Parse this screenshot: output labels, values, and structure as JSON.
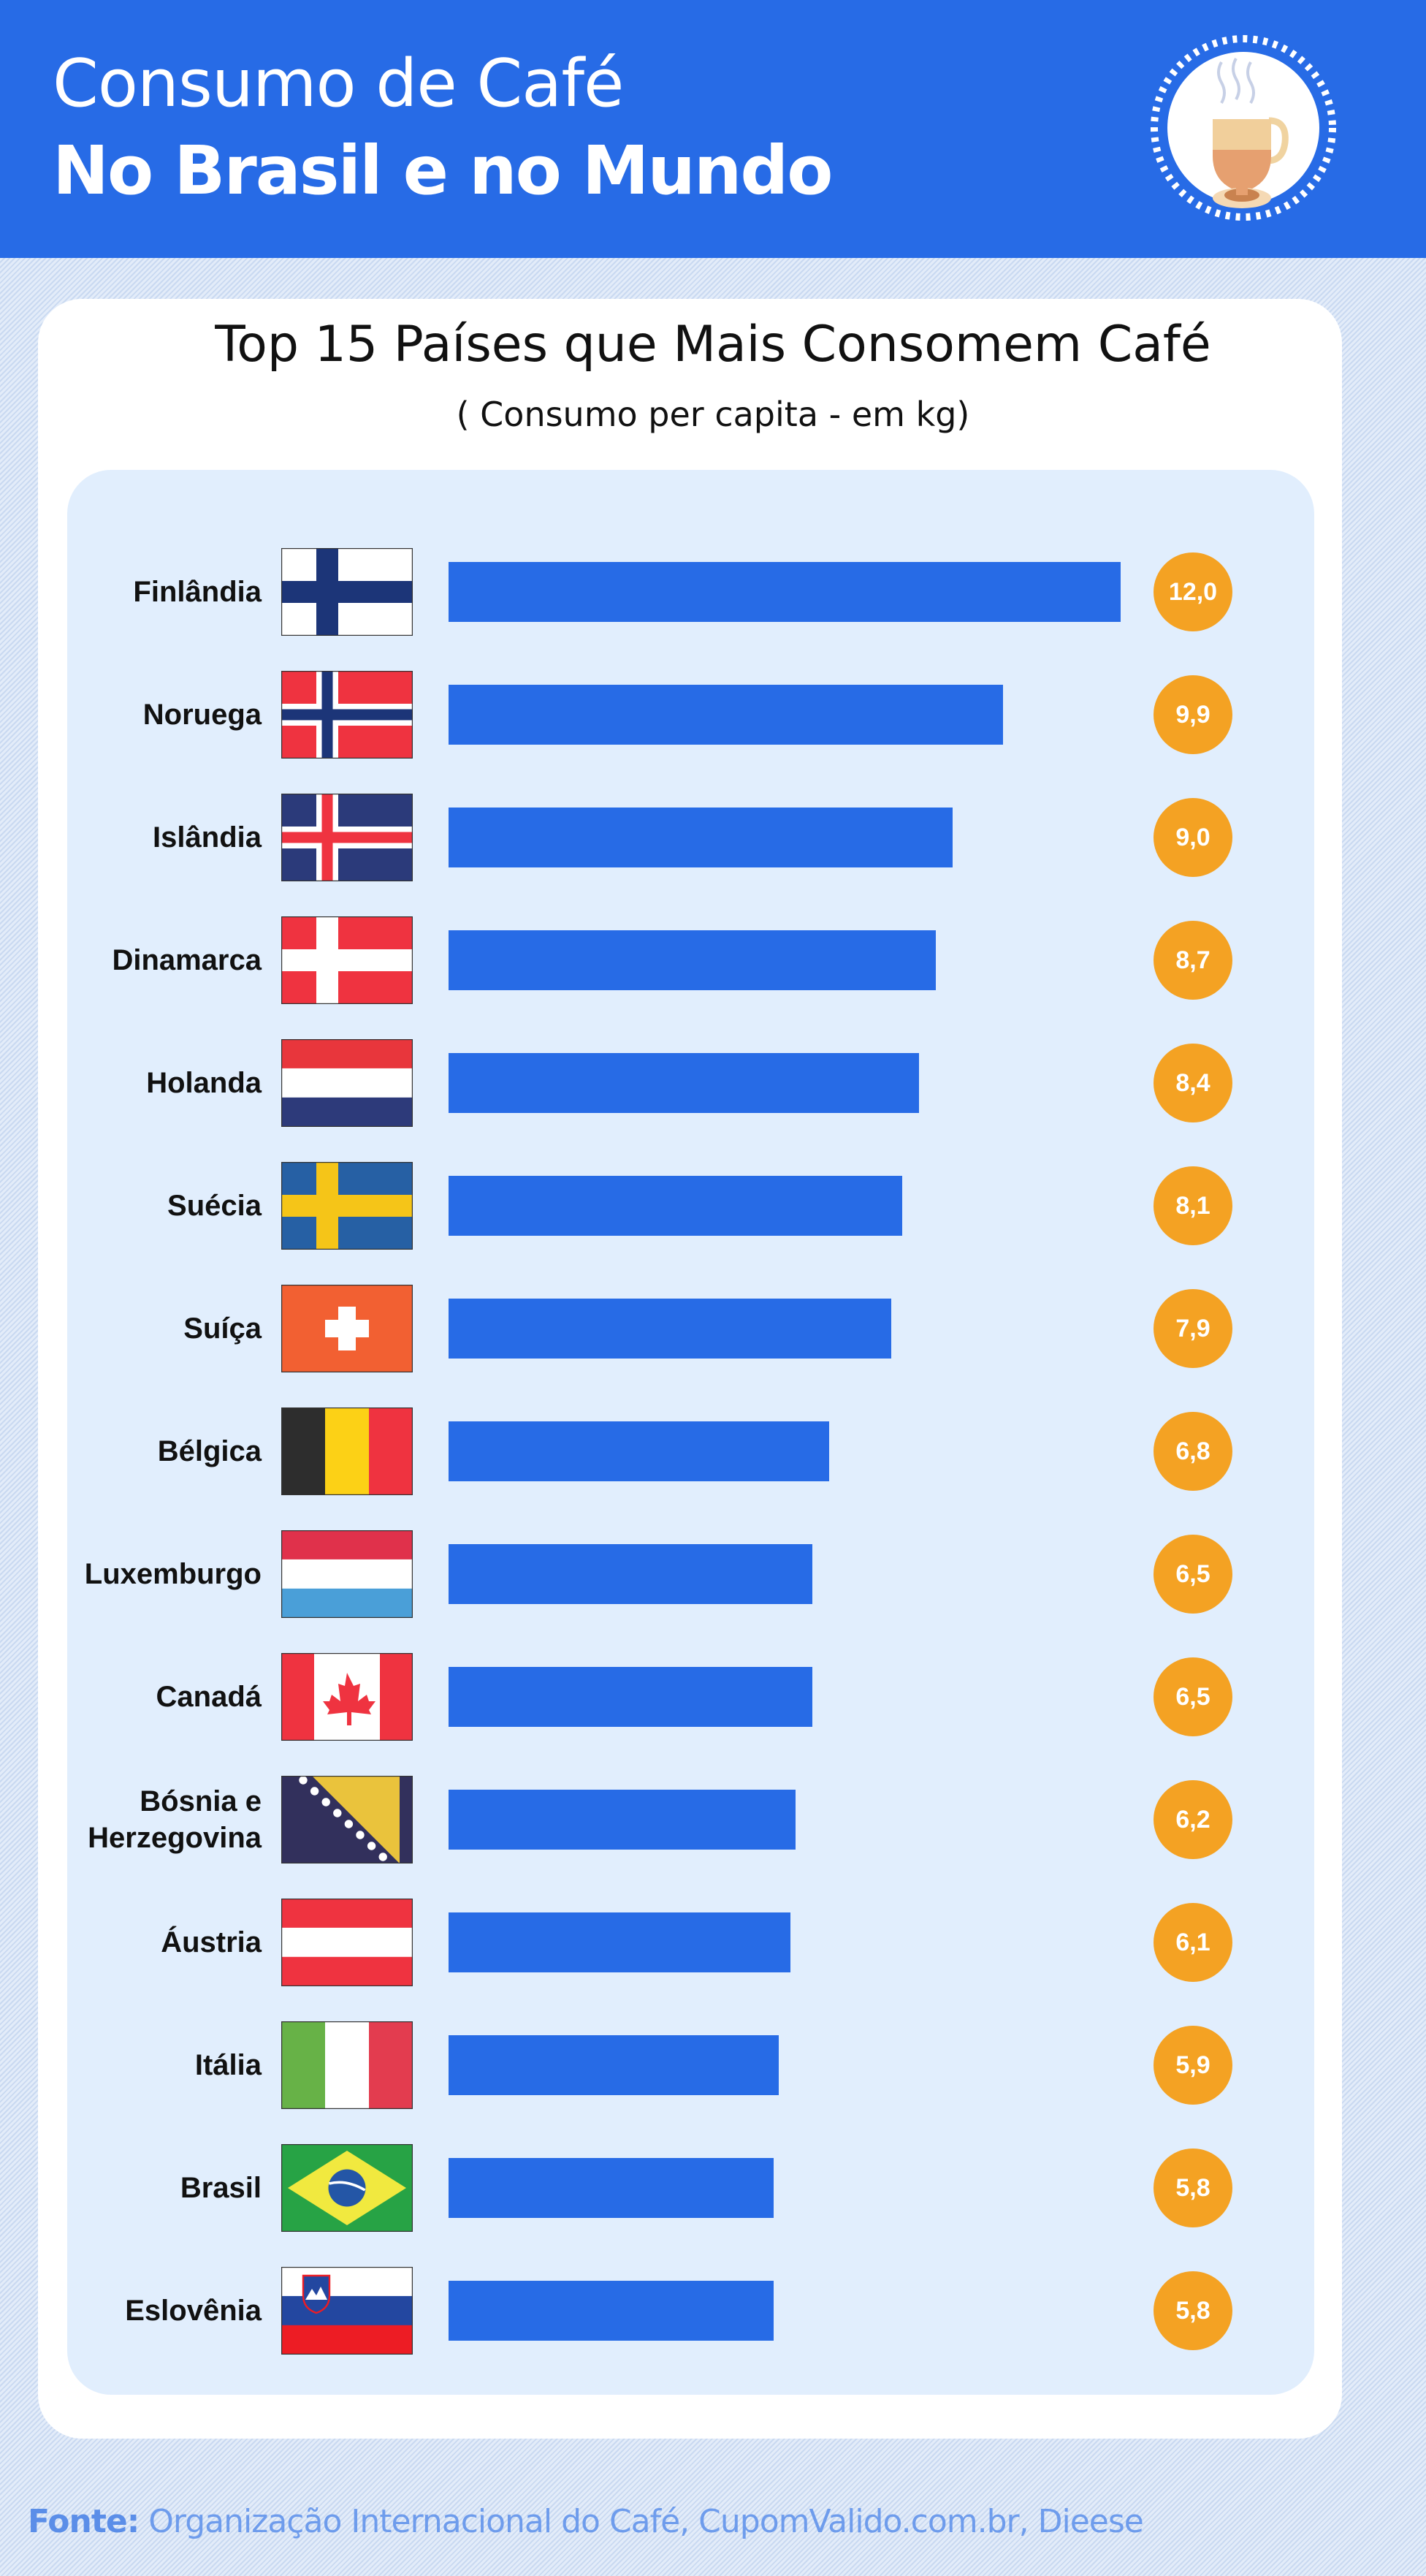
{
  "header": {
    "line1": "Consumo de Café",
    "line2": "No Brasil e no Mundo",
    "icon": "coffee-cup-icon"
  },
  "colors": {
    "header": "#276be6",
    "bar": "#276be6",
    "badge": "#f4a223",
    "panel": "#e1eefd"
  },
  "chart_data": {
    "type": "bar",
    "orientation": "horizontal",
    "title": "Top 15 Países que Mais Consomem Café",
    "subtitle": "( Consumo per capita - em kg)",
    "xlim": [
      0,
      12
    ],
    "grid": false,
    "rows": [
      {
        "country": "Finlândia",
        "flag": "fi",
        "value": 12.0,
        "label": "12,0"
      },
      {
        "country": "Noruega",
        "flag": "no",
        "value": 9.9,
        "label": "9,9"
      },
      {
        "country": "Islândia",
        "flag": "is",
        "value": 9.0,
        "label": "9,0"
      },
      {
        "country": "Dinamarca",
        "flag": "dk",
        "value": 8.7,
        "label": "8,7"
      },
      {
        "country": "Holanda",
        "flag": "nl",
        "value": 8.4,
        "label": "8,4"
      },
      {
        "country": "Suécia",
        "flag": "se",
        "value": 8.1,
        "label": "8,1"
      },
      {
        "country": "Suíça",
        "flag": "ch",
        "value": 7.9,
        "label": "7,9"
      },
      {
        "country": "Bélgica",
        "flag": "be",
        "value": 6.8,
        "label": "6,8"
      },
      {
        "country": "Luxemburgo",
        "flag": "lu",
        "value": 6.5,
        "label": "6,5"
      },
      {
        "country": "Canadá",
        "flag": "ca",
        "value": 6.5,
        "label": "6,5"
      },
      {
        "country": "Bósnia e Herzegovina",
        "flag": "ba",
        "value": 6.2,
        "label": "6,2"
      },
      {
        "country": "Áustria",
        "flag": "at",
        "value": 6.1,
        "label": "6,1"
      },
      {
        "country": "Itália",
        "flag": "it",
        "value": 5.9,
        "label": "5,9"
      },
      {
        "country": "Brasil",
        "flag": "br",
        "value": 5.8,
        "label": "5,8"
      },
      {
        "country": "Eslovênia",
        "flag": "si",
        "value": 5.8,
        "label": "5,8"
      }
    ]
  },
  "footer": {
    "prefix": "Fonte:",
    "text": " Organização Internacional do Café, CupomValido.com.br, Dieese"
  }
}
